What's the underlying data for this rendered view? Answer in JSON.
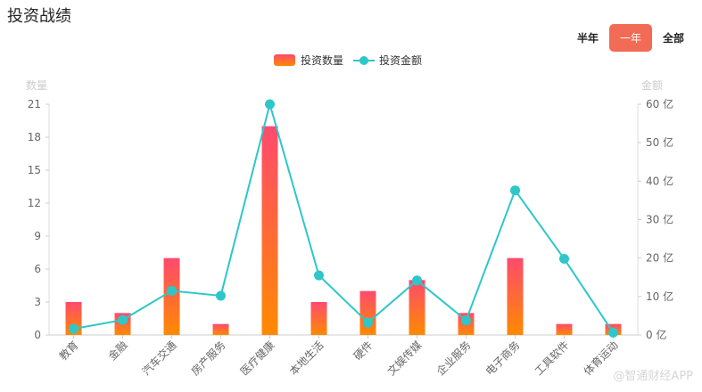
{
  "title": "投资战绩",
  "period_tabs": [
    {
      "label": "半年",
      "active": false
    },
    {
      "label": "一年",
      "active": true
    },
    {
      "label": "全部",
      "active": false
    }
  ],
  "watermark": "@智通财经APP",
  "colors": {
    "bar_top": "#ff4a6e",
    "bar_bottom": "#ff8a00",
    "line": "#2ec7c9",
    "accent": "#f26b54"
  },
  "chart_data": {
    "type": "bar+line",
    "categories": [
      "教育",
      "金融",
      "汽车交通",
      "房产服务",
      "医疗健康",
      "本地生活",
      "硬件",
      "文娱传媒",
      "企业服务",
      "电子商务",
      "工具软件",
      "体育运动"
    ],
    "series": [
      {
        "name": "投资数量",
        "type": "bar",
        "axis": "left",
        "values": [
          3,
          2,
          7,
          1,
          19,
          3,
          4,
          5,
          2,
          7,
          1,
          1
        ]
      },
      {
        "name": "投资金额",
        "type": "line",
        "axis": "right",
        "values": [
          1.6,
          3.9,
          11.5,
          10.2,
          60,
          15.5,
          3.2,
          14.2,
          3.8,
          37.6,
          19.8,
          0.6
        ]
      }
    ],
    "y_left": {
      "name": "数量",
      "min": 0,
      "max": 21,
      "ticks": [
        "0",
        "3",
        "6",
        "9",
        "12",
        "15",
        "18",
        "21"
      ]
    },
    "y_right": {
      "name": "金额",
      "min": 0,
      "max": 60,
      "ticks": [
        "0 亿",
        "10 亿",
        "20 亿",
        "30 亿",
        "40 亿",
        "50 亿",
        "60 亿"
      ]
    },
    "legend_position": "top-center",
    "grid": false
  }
}
